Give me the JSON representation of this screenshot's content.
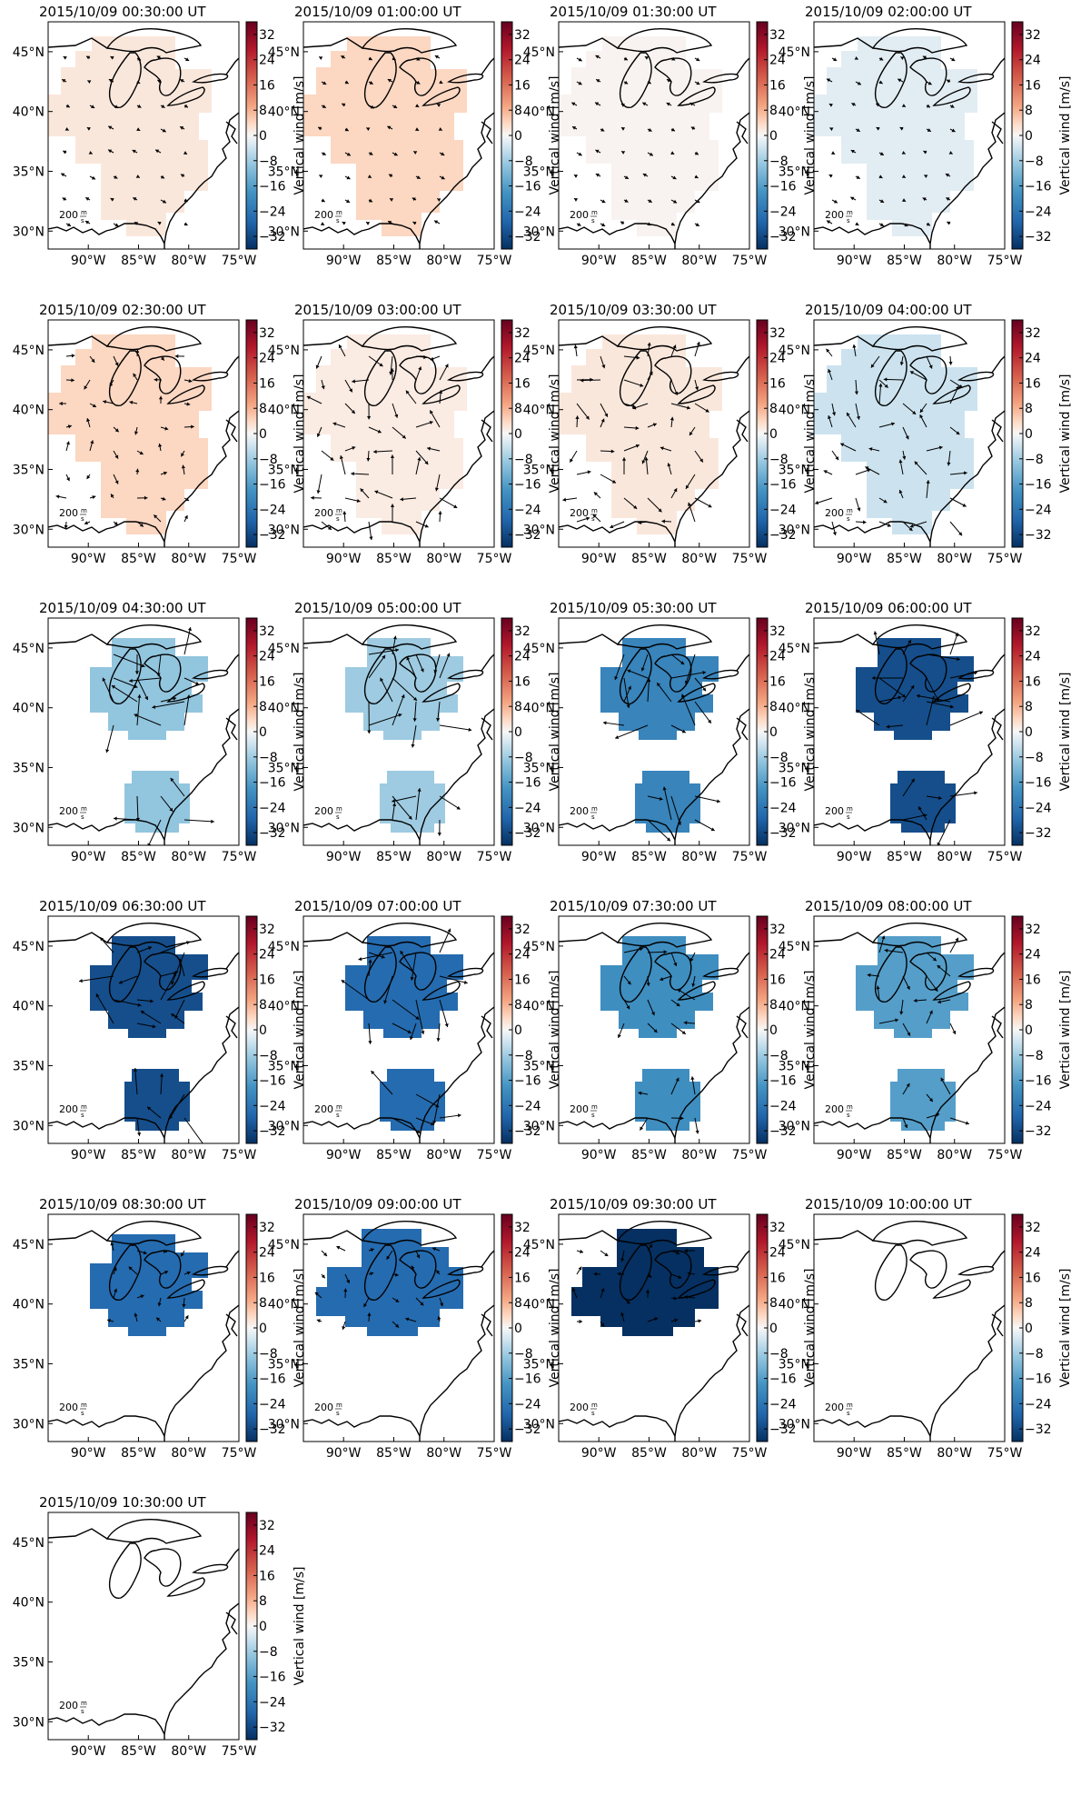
{
  "figure": {
    "colorbar": {
      "label": "Vertical wind [m/s]",
      "ticks": [
        32,
        24,
        16,
        8,
        0,
        -8,
        -16,
        -24,
        -32
      ],
      "range": [
        -36,
        36
      ],
      "colormap": "RdBu_r"
    },
    "axes": {
      "lat_ticks": [
        "45°N",
        "40°N",
        "35°N",
        "30°N"
      ],
      "lon_ticks": [
        "90°W",
        "85°W",
        "80°W",
        "75°W"
      ],
      "lat_range": [
        28.5,
        47.5
      ],
      "lon_range": [
        -94,
        -75
      ]
    },
    "quiver_key": {
      "value": "200",
      "unit_top": "m",
      "unit_bottom": "s"
    },
    "panels": [
      {
        "title": "2015/10/09 00:30:00 UT",
        "value": 2,
        "regions": "full",
        "arrows": "faint"
      },
      {
        "title": "2015/10/09 01:00:00 UT",
        "value": 4,
        "regions": "full",
        "arrows": "faint"
      },
      {
        "title": "2015/10/09 01:30:00 UT",
        "value": 0.5,
        "regions": "full",
        "arrows": "faint"
      },
      {
        "title": "2015/10/09 02:00:00 UT",
        "value": -2,
        "regions": "full",
        "arrows": "faint"
      },
      {
        "title": "2015/10/09 02:30:00 UT",
        "value": 4,
        "regions": "full",
        "arrows": "small"
      },
      {
        "title": "2015/10/09 03:00:00 UT",
        "value": 1.5,
        "regions": "full",
        "arrows": "medium"
      },
      {
        "title": "2015/10/09 03:30:00 UT",
        "value": 2,
        "regions": "full",
        "arrows": "medium"
      },
      {
        "title": "2015/10/09 04:00:00 UT",
        "value": -4,
        "regions": "full",
        "arrows": "medium"
      },
      {
        "title": "2015/10/09 04:30:00 UT",
        "value": -9,
        "regions": "split",
        "arrows": "large"
      },
      {
        "title": "2015/10/09 05:00:00 UT",
        "value": -8,
        "regions": "split",
        "arrows": "large"
      },
      {
        "title": "2015/10/09 05:30:00 UT",
        "value": -21,
        "regions": "split",
        "arrows": "large"
      },
      {
        "title": "2015/10/09 06:00:00 UT",
        "value": -31,
        "regions": "split",
        "arrows": "large"
      },
      {
        "title": "2015/10/09 06:30:00 UT",
        "value": -31,
        "regions": "split",
        "arrows": "large"
      },
      {
        "title": "2015/10/09 07:00:00 UT",
        "value": -26,
        "regions": "split",
        "arrows": "large"
      },
      {
        "title": "2015/10/09 07:30:00 UT",
        "value": -19,
        "regions": "split",
        "arrows": "medium"
      },
      {
        "title": "2015/10/09 08:00:00 UT",
        "value": -16,
        "regions": "split",
        "arrows": "medium"
      },
      {
        "title": "2015/10/09 08:30:00 UT",
        "value": -26,
        "regions": "north",
        "arrows": "small"
      },
      {
        "title": "2015/10/09 09:00:00 UT",
        "value": -26,
        "regions": "west",
        "arrows": "small"
      },
      {
        "title": "2015/10/09 09:30:00 UT",
        "value": -38,
        "regions": "west",
        "arrows": "small"
      },
      {
        "title": "2015/10/09 10:00:00 UT",
        "value": null,
        "regions": "none",
        "arrows": "none"
      },
      {
        "title": "2015/10/09 10:30:00 UT",
        "value": null,
        "regions": "none",
        "arrows": "none"
      }
    ]
  }
}
